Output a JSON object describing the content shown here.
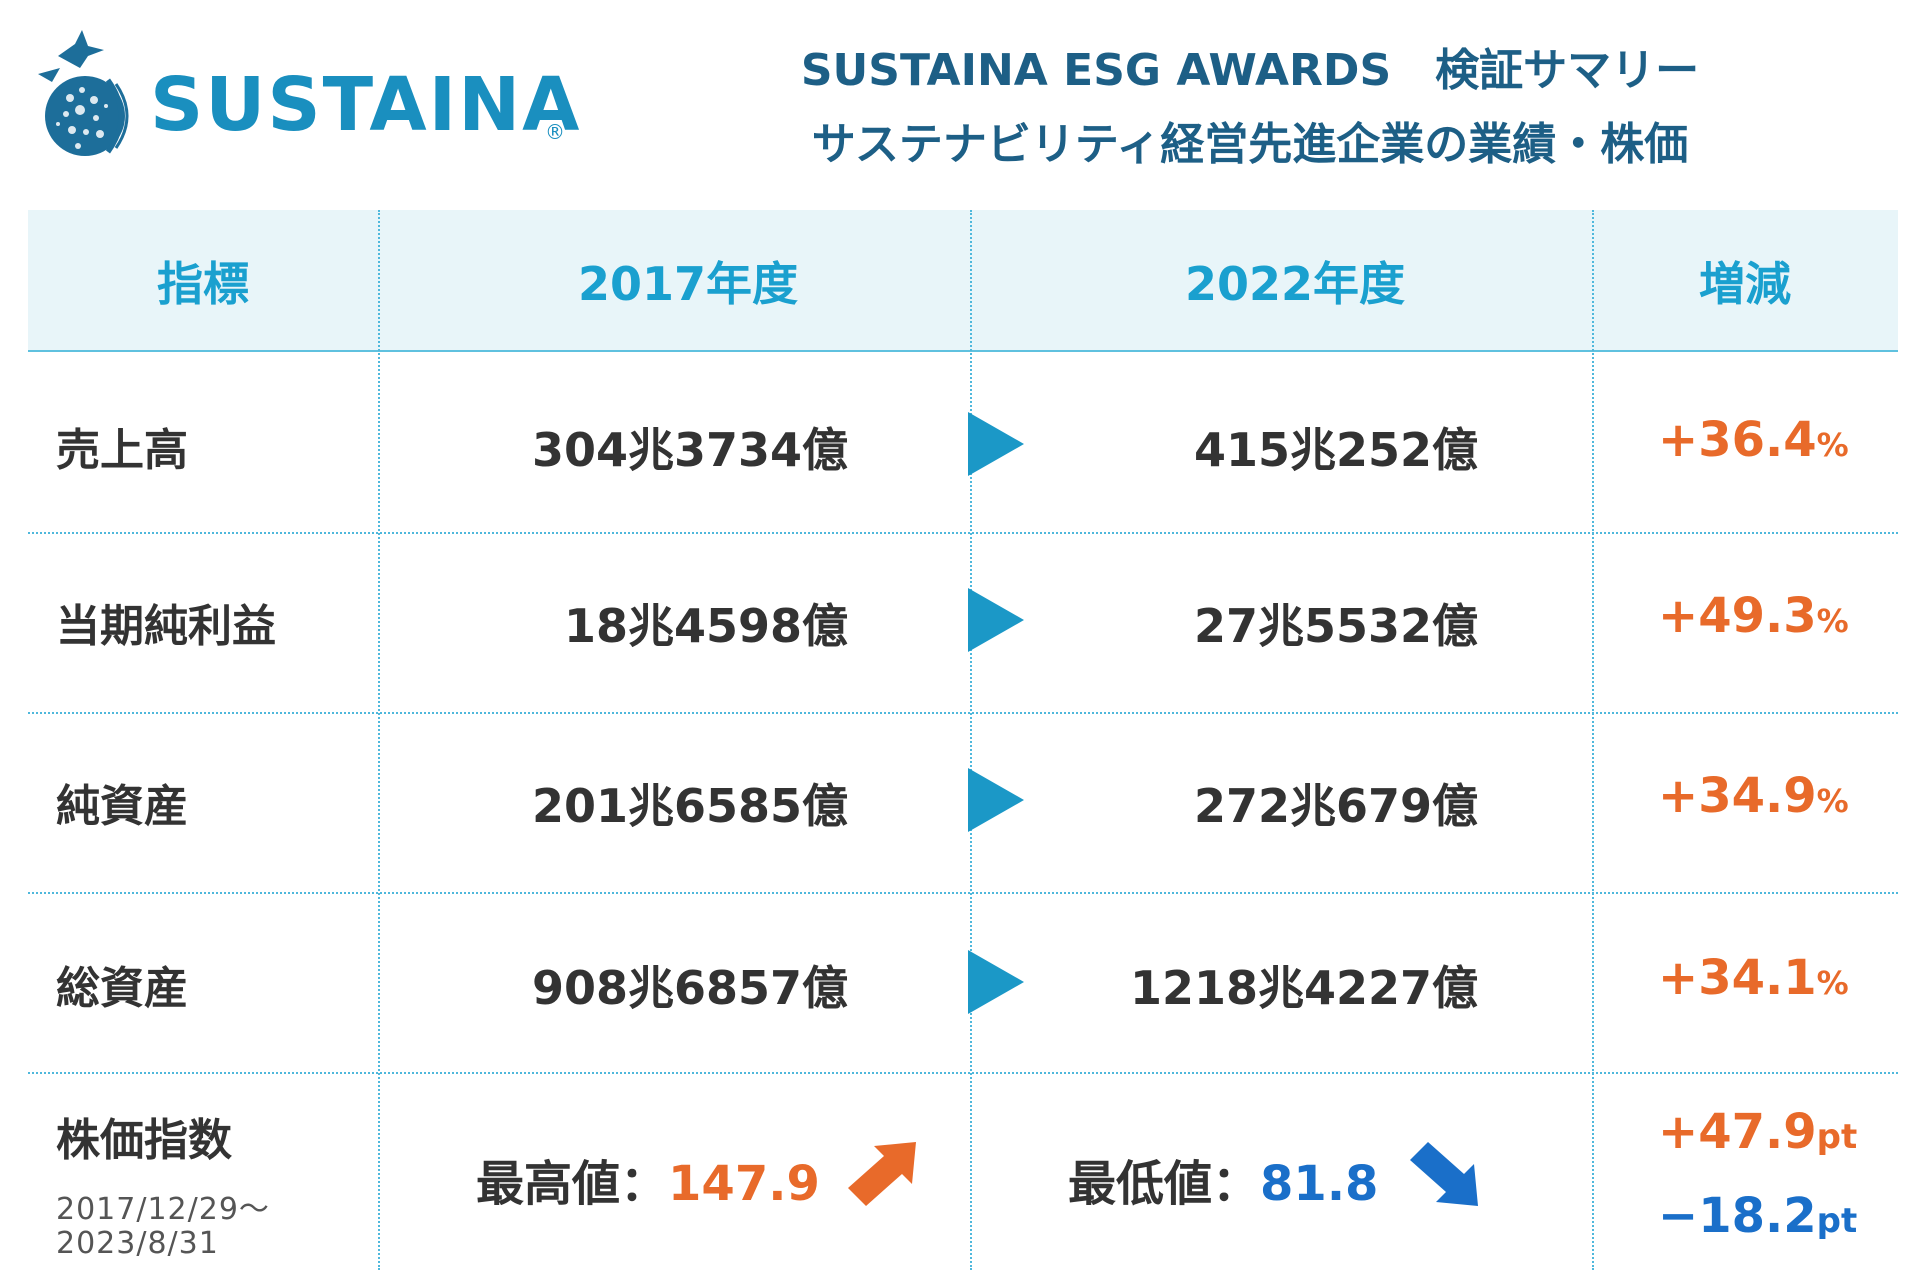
{
  "header": {
    "logo_text": "SUSTAINA",
    "logo_reg": "®",
    "title_line1": "SUSTAINA ESG AWARDS　検証サマリー",
    "title_line2": "サステナビリティ経営先進企業の業績・株価"
  },
  "table": {
    "columns": [
      "指標",
      "2017年度",
      "2022年度",
      "増減"
    ],
    "rows": [
      {
        "label": "売上高",
        "v2017": "304兆3734億",
        "v2022": "415兆252億",
        "change": "+36.4",
        "unit": "%"
      },
      {
        "label": "当期純利益",
        "v2017": "18兆4598億",
        "v2022": "27兆5532億",
        "change": "+49.3",
        "unit": "%"
      },
      {
        "label": "純資産",
        "v2017": "201兆6585億",
        "v2022": "272兆679億",
        "change": "+34.9",
        "unit": "%"
      },
      {
        "label": "総資産",
        "v2017": "908兆6857億",
        "v2022": "1218兆4227億",
        "change": "+34.1",
        "unit": "%"
      }
    ],
    "stock": {
      "label": "株価指数",
      "period_line1": "2017/12/29〜",
      "period_line2": "2023/8/31",
      "high_label": "最高値：",
      "high_value": "147.9",
      "low_label": "最低値：",
      "low_value": "81.8",
      "change_up": "+47.9",
      "change_down": "−18.2",
      "change_unit": "pt"
    }
  },
  "colors": {
    "accent_blue": "#1aa0cf",
    "title_navy": "#1d5f86",
    "increase_orange": "#e86a2a",
    "decrease_blue": "#1a6fc9"
  }
}
